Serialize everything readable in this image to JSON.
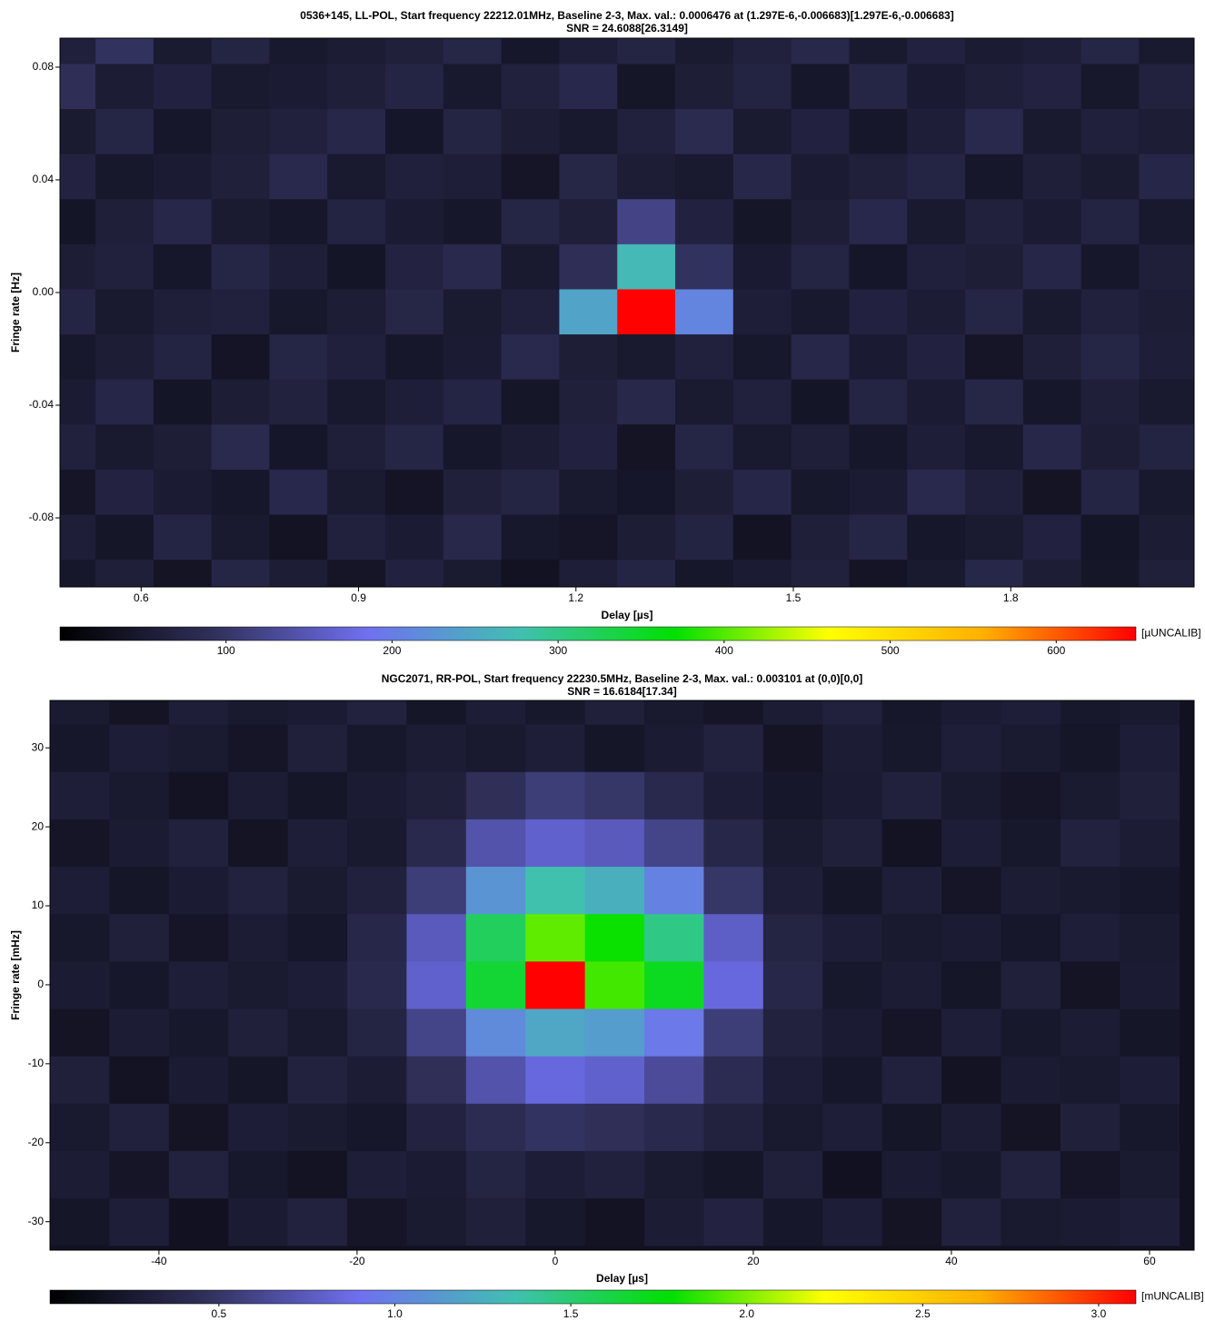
{
  "chart_data": [
    {
      "type": "heatmap",
      "title": "0536+145, LL-POL, Start frequency 22212.01MHz, Baseline 2-3, Max. val.: 0.0006476 at (1.297E-6,-0.006683)[1.297E-6,-0.006683]",
      "subtitle": "SNR = 24.6088[26.3149]",
      "xlabel": "Delay [µs]",
      "ylabel": "Fringe rate [Hz]",
      "xlim": [
        0.488,
        2.053
      ],
      "ylim": [
        -0.1045,
        0.0903
      ],
      "xticks": [
        0.6,
        0.9,
        1.2,
        1.5,
        1.8
      ],
      "yticks": [
        -0.08,
        -0.04,
        {
          "value": 0,
          "label": "0.00"
        },
        0.04,
        0.08
      ],
      "x": [
        0.497,
        0.577,
        0.657,
        0.737,
        0.817,
        0.897,
        0.977,
        1.057,
        1.137,
        1.217,
        1.297,
        1.377,
        1.457,
        1.537,
        1.617,
        1.697,
        1.777,
        1.857,
        1.937,
        2.017
      ],
      "y": [
        -0.1027,
        -0.0867,
        -0.0707,
        -0.0547,
        -0.0387,
        -0.0227,
        -0.0067,
        0.0093,
        0.0253,
        0.0413,
        0.0573,
        0.0733,
        0.0893
      ],
      "z": [
        [
          45,
          60,
          38,
          72,
          55,
          40,
          66,
          50,
          35,
          58,
          70,
          44,
          52,
          63,
          39,
          48,
          75,
          56,
          42,
          61
        ],
        [
          58,
          42,
          70,
          49,
          36,
          64,
          53,
          77,
          46,
          40,
          55,
          68,
          37,
          59,
          72,
          45,
          50,
          66,
          41,
          54
        ],
        [
          40,
          67,
          52,
          44,
          78,
          50,
          39,
          61,
          69,
          48,
          43,
          57,
          74,
          46,
          53,
          80,
          62,
          38,
          70,
          47
        ],
        [
          63,
          49,
          57,
          81,
          43,
          59,
          72,
          45,
          54,
          66,
          38,
          71,
          49,
          60,
          44,
          58,
          47,
          76,
          55,
          68
        ],
        [
          52,
          74,
          41,
          56,
          65,
          47,
          58,
          70,
          42,
          61,
          77,
          50,
          63,
          41,
          69,
          52,
          73,
          45,
          60,
          49
        ],
        [
          46,
          55,
          68,
          39,
          71,
          62,
          44,
          53,
          80,
          57,
          49,
          64,
          46,
          75,
          51,
          66,
          40,
          59,
          72,
          58
        ],
        [
          70,
          48,
          59,
          64,
          46,
          55,
          73,
          50,
          62,
          245,
          647.6,
          210,
          58,
          47,
          66,
          54,
          71,
          49,
          63,
          56
        ],
        [
          56,
          63,
          45,
          72,
          58,
          41,
          67,
          80,
          49,
          88,
          270,
          95,
          51,
          69,
          43,
          62,
          57,
          74,
          45,
          60
        ],
        [
          41,
          59,
          76,
          50,
          44,
          68,
          52,
          45,
          71,
          60,
          120,
          66,
          42,
          57,
          78,
          49,
          64,
          53,
          68,
          47
        ],
        [
          67,
          46,
          53,
          61,
          79,
          49,
          62,
          58,
          40,
          73,
          55,
          48,
          75,
          52,
          61,
          70,
          45,
          59,
          50,
          74
        ],
        [
          50,
          71,
          44,
          57,
          63,
          76,
          43,
          69,
          55,
          47,
          64,
          82,
          50,
          66,
          45,
          58,
          79,
          48,
          62,
          55
        ],
        [
          88,
          54,
          66,
          48,
          52,
          59,
          70,
          47,
          63,
          78,
          42,
          57,
          68,
          44,
          72,
          51,
          60,
          67,
          46,
          65
        ],
        [
          62,
          95,
          50,
          69,
          47,
          54,
          61,
          73,
          45,
          58,
          69,
          50,
          63,
          77,
          49,
          66,
          52,
          58,
          71,
          48
        ]
      ],
      "colorbar": {
        "clim": [
          0,
          648
        ],
        "ticks": [
          100,
          200,
          300,
          400,
          500,
          600
        ],
        "label": "[µUNCALIB]",
        "colors": [
          "#000000",
          "#30305a",
          "#7070f0",
          "#40c0b0",
          "#00e000",
          "#ffff00",
          "#ffb000",
          "#ff0000"
        ]
      }
    },
    {
      "type": "heatmap",
      "title": "NGC2071, RR-POL, Start frequency 22230.5MHz, Baseline 2-3, Max. val.: 0.003101 at (0,0)[0,0]",
      "subtitle": "SNR = 16.6184[17.34]",
      "xlabel": "Delay [µs]",
      "ylabel": "Fringe rate [mHz]",
      "xlim": [
        -51,
        64.5
      ],
      "ylim": [
        -33.6,
        36
      ],
      "xticks": [
        -40,
        -20,
        0,
        20,
        40,
        60
      ],
      "yticks": [
        -30,
        -20,
        -10,
        0,
        10,
        20,
        30
      ],
      "x": [
        -48,
        -42,
        -36,
        -30,
        -24,
        -18,
        -12,
        -6,
        0,
        6,
        12,
        18,
        24,
        30,
        36,
        42,
        48,
        54,
        60
      ],
      "y": [
        -30,
        -24,
        -18,
        -12,
        -6,
        0,
        6,
        12,
        18,
        24,
        30,
        36
      ],
      "z": [
        [
          0.22,
          0.3,
          0.18,
          0.27,
          0.33,
          0.21,
          0.26,
          0.31,
          0.24,
          0.19,
          0.28,
          0.34,
          0.23,
          0.29,
          0.2,
          0.32,
          0.25,
          0.27,
          0.3
        ],
        [
          0.28,
          0.21,
          0.33,
          0.24,
          0.19,
          0.3,
          0.27,
          0.35,
          0.29,
          0.32,
          0.26,
          0.22,
          0.31,
          0.18,
          0.27,
          0.24,
          0.33,
          0.21,
          0.26
        ],
        [
          0.25,
          0.32,
          0.2,
          0.29,
          0.26,
          0.23,
          0.34,
          0.42,
          0.48,
          0.45,
          0.4,
          0.33,
          0.25,
          0.3,
          0.22,
          0.28,
          0.2,
          0.31,
          0.24
        ],
        [
          0.31,
          0.19,
          0.27,
          0.22,
          0.33,
          0.28,
          0.45,
          0.7,
          0.85,
          0.8,
          0.65,
          0.42,
          0.29,
          0.23,
          0.32,
          0.19,
          0.27,
          0.25,
          0.29
        ],
        [
          0.2,
          0.28,
          0.24,
          0.31,
          0.25,
          0.35,
          0.6,
          1.05,
          1.2,
          1.15,
          0.95,
          0.55,
          0.33,
          0.27,
          0.21,
          0.3,
          0.24,
          0.28,
          0.22
        ],
        [
          0.27,
          0.23,
          0.3,
          0.26,
          0.29,
          0.4,
          0.8,
          1.65,
          3.101,
          1.9,
          1.7,
          0.85,
          0.38,
          0.24,
          0.28,
          0.22,
          0.31,
          0.2,
          0.27
        ],
        [
          0.24,
          0.31,
          0.21,
          0.28,
          0.23,
          0.38,
          0.75,
          1.55,
          1.95,
          1.8,
          1.45,
          0.78,
          0.35,
          0.29,
          0.25,
          0.27,
          0.23,
          0.3,
          0.26
        ],
        [
          0.29,
          0.22,
          0.27,
          0.33,
          0.26,
          0.32,
          0.55,
          1.1,
          1.35,
          1.25,
          1.0,
          0.5,
          0.3,
          0.22,
          0.3,
          0.21,
          0.28,
          0.25,
          0.23
        ],
        [
          0.21,
          0.27,
          0.32,
          0.2,
          0.3,
          0.25,
          0.4,
          0.7,
          0.8,
          0.75,
          0.6,
          0.38,
          0.26,
          0.31,
          0.19,
          0.29,
          0.24,
          0.33,
          0.28
        ],
        [
          0.3,
          0.25,
          0.19,
          0.28,
          0.22,
          0.27,
          0.31,
          0.45,
          0.55,
          0.5,
          0.4,
          0.29,
          0.23,
          0.27,
          0.32,
          0.25,
          0.21,
          0.26,
          0.31
        ],
        [
          0.23,
          0.29,
          0.26,
          0.21,
          0.31,
          0.24,
          0.28,
          0.25,
          0.3,
          0.22,
          0.27,
          0.33,
          0.2,
          0.28,
          0.24,
          0.3,
          0.26,
          0.22,
          0.29
        ],
        [
          0.26,
          0.2,
          0.3,
          0.25,
          0.27,
          0.33,
          0.22,
          0.29,
          0.24,
          0.31,
          0.25,
          0.21,
          0.28,
          0.32,
          0.23,
          0.27,
          0.3,
          0.24,
          0.25
        ]
      ],
      "colorbar": {
        "clim": [
          0.02,
          3.106
        ],
        "ticks": [
          0.5,
          {
            "value": 1,
            "label": "1.0"
          },
          1.5,
          {
            "value": 2,
            "label": "2.0"
          },
          2.5,
          {
            "value": 3,
            "label": "3.0"
          }
        ],
        "label": "[mUNCALIB]",
        "colors": [
          "#000000",
          "#30305a",
          "#7070f0",
          "#40c0b0",
          "#00e000",
          "#ffff00",
          "#ffb000",
          "#ff0000"
        ]
      }
    }
  ]
}
